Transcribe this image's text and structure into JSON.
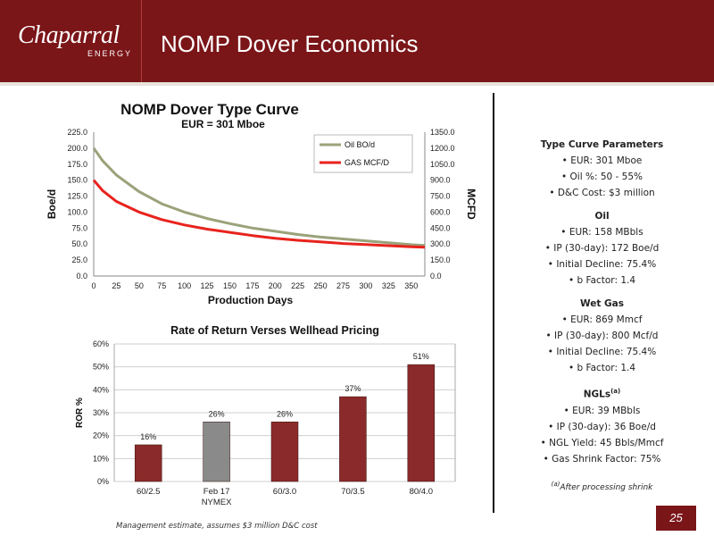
{
  "header": {
    "logo_main": "Chaparral",
    "logo_sub": "ENERGY",
    "title": "NOMP Dover Economics"
  },
  "page_number": "25",
  "bottom_note": "Management estimate, assumes $3 million D&C cost",
  "colors": {
    "header_bg": "#7a1518",
    "oil_line": "#9aa27a",
    "gas_line": "#e8231d",
    "bar_red": "#8b2a2a",
    "bar_gray": "#8a8a8a"
  },
  "params": {
    "type_curve": {
      "heading": "Type Curve Parameters",
      "items": [
        "EUR: 301 Mboe",
        "Oil %: 50 - 55%",
        "D&C Cost: $3 million"
      ]
    },
    "oil": {
      "heading": "Oil",
      "items": [
        "EUR: 158 MBbls",
        "IP (30-day): 172 Boe/d",
        "Initial Decline: 75.4%",
        "b Factor: 1.4"
      ]
    },
    "wet_gas": {
      "heading": "Wet Gas",
      "items": [
        "EUR: 869 Mmcf",
        "IP (30-day): 800 Mcf/d",
        "Initial Decline: 75.4%",
        "b Factor: 1.4"
      ]
    },
    "ngls": {
      "heading": "NGLs",
      "heading_sup": "(a)",
      "items": [
        "EUR: 39 MBbls",
        "IP (30-day): 36 Boe/d",
        "NGL Yield: 45 Bbls/Mmcf",
        "Gas Shrink Factor: 75%"
      ]
    },
    "footnote_sup": "(a)",
    "footnote": "After processing shrink"
  },
  "chart_data": [
    {
      "type": "line",
      "title": "NOMP Dover Type Curve",
      "subtitle": "EUR = 301 Mboe",
      "xlabel": "Production Days",
      "ylabel": "Boe/d",
      "y2label": "MCFD",
      "xlim": [
        0,
        365
      ],
      "ylim": [
        0,
        225
      ],
      "y2lim": [
        0,
        1350
      ],
      "x_ticks": [
        "0",
        "25",
        "50",
        "75",
        "100",
        "125",
        "150",
        "175",
        "200",
        "225",
        "250",
        "275",
        "300",
        "325",
        "350"
      ],
      "y_ticks": [
        "0.0",
        "25.0",
        "50.0",
        "75.0",
        "100.0",
        "125.0",
        "150.0",
        "175.0",
        "200.0",
        "225.0"
      ],
      "y2_ticks": [
        "0.0",
        "150.0",
        "300.0",
        "450.0",
        "600.0",
        "750.0",
        "900.0",
        "1050.0",
        "1200.0",
        "1350.0"
      ],
      "legend_position": "top-right",
      "grid": false,
      "series": [
        {
          "name": "Oil BO/d",
          "axis": "left",
          "x": [
            0,
            10,
            25,
            50,
            75,
            100,
            125,
            150,
            175,
            200,
            225,
            250,
            275,
            300,
            325,
            350,
            365
          ],
          "y": [
            200,
            180,
            158,
            132,
            113,
            100,
            90,
            82,
            75,
            70,
            65,
            61,
            58,
            55,
            52,
            49,
            48
          ]
        },
        {
          "name": "GAS MCF/D",
          "axis": "right",
          "x": [
            0,
            10,
            25,
            50,
            75,
            100,
            125,
            150,
            175,
            200,
            225,
            250,
            275,
            300,
            325,
            350,
            365
          ],
          "y": [
            900,
            800,
            700,
            600,
            530,
            480,
            440,
            410,
            380,
            355,
            335,
            320,
            305,
            295,
            285,
            275,
            270
          ]
        }
      ]
    },
    {
      "type": "bar",
      "title": "Rate of Return Verses Wellhead Pricing",
      "xlabel": "",
      "ylabel": "ROR %",
      "ylim": [
        0,
        60
      ],
      "y_ticks": [
        "0%",
        "10%",
        "20%",
        "30%",
        "40%",
        "50%",
        "60%"
      ],
      "categories": [
        "60/2.5",
        "Feb 17",
        "60/3.0",
        "70/3.5",
        "80/4.0"
      ],
      "category_sub": [
        "",
        "NYMEX",
        "",
        "",
        ""
      ],
      "values": [
        16,
        26,
        26,
        37,
        51
      ],
      "labels": [
        "16%",
        "26%",
        "26%",
        "37%",
        "51%"
      ],
      "highlight": [
        false,
        true,
        false,
        false,
        false
      ],
      "grid": true
    }
  ]
}
